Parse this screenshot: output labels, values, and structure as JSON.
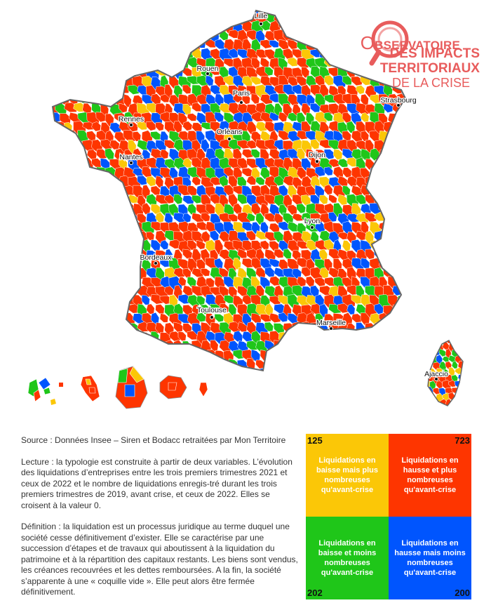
{
  "logo": {
    "line1_initial": "O",
    "line1_rest": "BSERVATOIRE",
    "line2": "DES IMPACTS",
    "line3": "TERRITORIAUX",
    "line4": "DE LA CRISE",
    "color": "#e85c5c"
  },
  "colors": {
    "yellow": "#fbc707",
    "red": "#fe3500",
    "green": "#1fc619",
    "blue": "#0055fe",
    "border": "#ffffff"
  },
  "cities": [
    {
      "name": "Lille"
    },
    {
      "name": "Rouen"
    },
    {
      "name": "Paris"
    },
    {
      "name": "Strasbourg"
    },
    {
      "name": "Rennes"
    },
    {
      "name": "Orléans"
    },
    {
      "name": "Nantes"
    },
    {
      "name": "Dijon"
    },
    {
      "name": "Lyon"
    },
    {
      "name": "Bordeaux"
    },
    {
      "name": "Toulouse"
    },
    {
      "name": "Marseille"
    },
    {
      "name": "Ajaccio"
    }
  ],
  "source": "Source : Données Insee – Siren et Bodacc retraitées par Mon Territoire",
  "lecture": "Lecture : la typologie est construite à partir de deux variables. L’évolution des liquidations d’entreprises entre les trois premiers trimestres 2021 et ceux de 2022 et le nombre de liquidations enregis-tré durant les trois premiers trimestres de 2019, avant crise, et ceux de 2022. Elles se croisent à la valeur 0.",
  "definition": "Définition : la liquidation est un processus juridique au terme duquel une société cesse définitivement d’exister. Elle se caractérise par une succession d’étapes et de travaux qui aboutissent à la liquidation du patrimoine et à la répartition des capitaux restants. Les biens sont vendus, les créances recouvrées et les dettes remboursées.  A la fin, la société s’apparente à une « coquille vide ». Elle peut alors être fermée définitivement.",
  "legend": {
    "top_left": {
      "count": "125",
      "label": "Liquidations en baisse mais plus nombreuses qu'avant-crise",
      "color": "#fbc707"
    },
    "top_right": {
      "count": "723",
      "label": "Liquidations en hausse et plus nombreuses qu'avant-crise",
      "color": "#fe3500"
    },
    "bottom_left": {
      "count": "202",
      "label": "Liquidations en baisse et moins nombreuses qu'avant-crise",
      "color": "#1fc619"
    },
    "bottom_right": {
      "count": "200",
      "label": "Liquidations en hausse mais moins nombreuses qu'avant-crise",
      "color": "#0055fe"
    }
  }
}
